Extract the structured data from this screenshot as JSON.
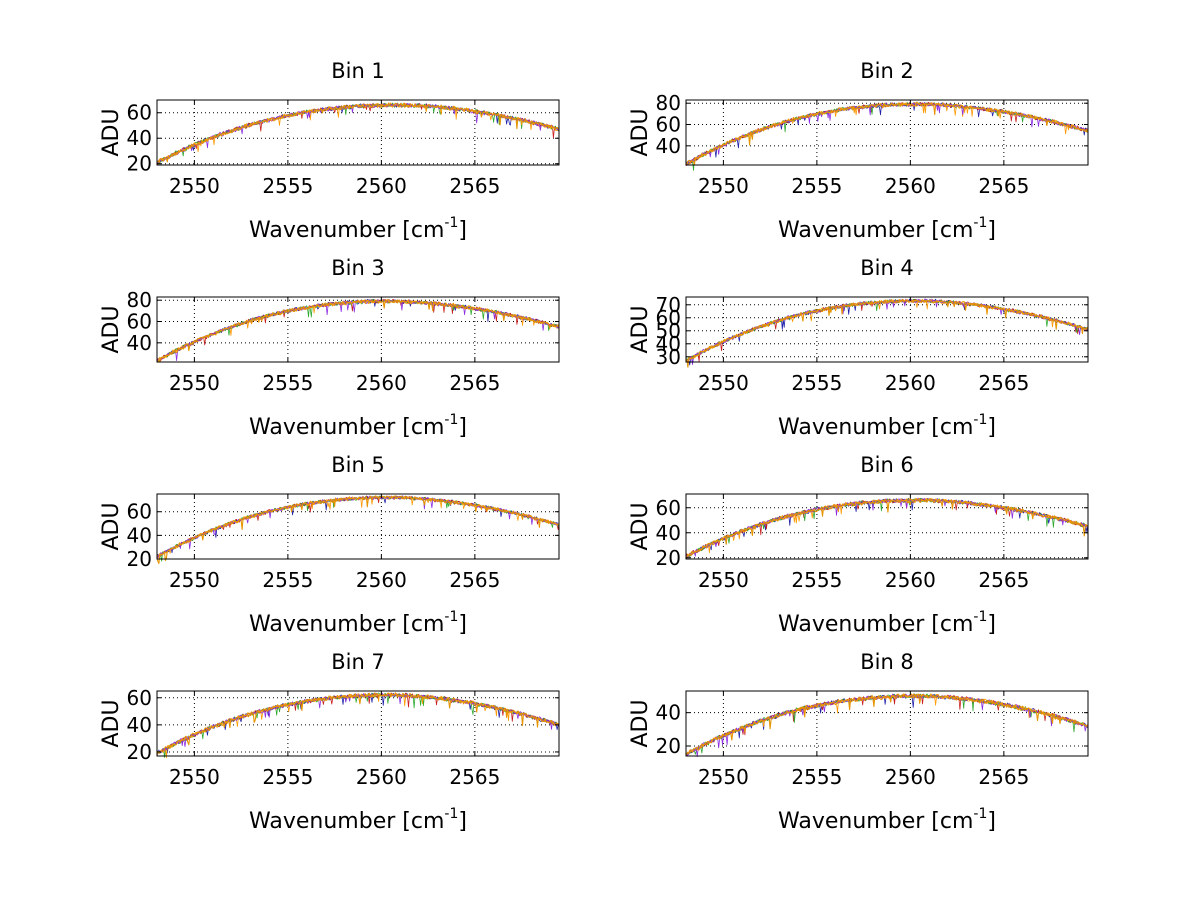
{
  "chart_data": {
    "type": "line",
    "figure_layout": "4x2 grid of subplots",
    "xlabel_text": "Wavenumber [cm",
    "xlabel_superscript": "-1",
    "xlabel_close": "]",
    "ylabel": "ADU",
    "xlim": [
      2548,
      2569.5
    ],
    "xticks": [
      2550,
      2555,
      2560,
      2565
    ],
    "series_colors": [
      "#1f1fa8",
      "#c81e1e",
      "#2eaa2e",
      "#ff9900",
      "#8a2be2",
      "#e69500"
    ],
    "grid": true,
    "subplots": [
      {
        "title": "Bin 1",
        "ylim": [
          19,
          70
        ],
        "yticks": [
          20,
          40,
          60
        ],
        "start": 21,
        "peak": 66,
        "peakX": 2561,
        "end": 47,
        "noise": 1.6
      },
      {
        "title": "Bin 2",
        "ylim": [
          22,
          83
        ],
        "yticks": [
          40,
          60,
          80
        ],
        "start": 23,
        "peak": 79,
        "peakX": 2560.5,
        "end": 54,
        "noise": 1.8
      },
      {
        "title": "Bin 3",
        "ylim": [
          22,
          83
        ],
        "yticks": [
          40,
          60,
          80
        ],
        "start": 23,
        "peak": 79,
        "peakX": 2560.5,
        "end": 55,
        "noise": 1.8
      },
      {
        "title": "Bin 4",
        "ylim": [
          26,
          76
        ],
        "yticks": [
          30,
          40,
          50,
          60,
          70
        ],
        "start": 27,
        "peak": 73,
        "peakX": 2560.5,
        "end": 51,
        "noise": 1.4
      },
      {
        "title": "Bin 5",
        "ylim": [
          20,
          75
        ],
        "yticks": [
          20,
          40,
          60
        ],
        "start": 22,
        "peak": 72,
        "peakX": 2560.5,
        "end": 49,
        "noise": 1.5
      },
      {
        "title": "Bin 6",
        "ylim": [
          19,
          71
        ],
        "yticks": [
          20,
          40,
          60
        ],
        "start": 21,
        "peak": 66,
        "peakX": 2560.5,
        "end": 45,
        "noise": 1.6
      },
      {
        "title": "Bin 7",
        "ylim": [
          17,
          65
        ],
        "yticks": [
          20,
          40,
          60
        ],
        "start": 19,
        "peak": 62,
        "peakX": 2560.5,
        "end": 40,
        "noise": 1.5
      },
      {
        "title": "Bin 8",
        "ylim": [
          14,
          53
        ],
        "yticks": [
          20,
          40
        ],
        "start": 15,
        "peak": 50,
        "peakX": 2560.5,
        "end": 32,
        "noise": 1.3
      }
    ]
  }
}
